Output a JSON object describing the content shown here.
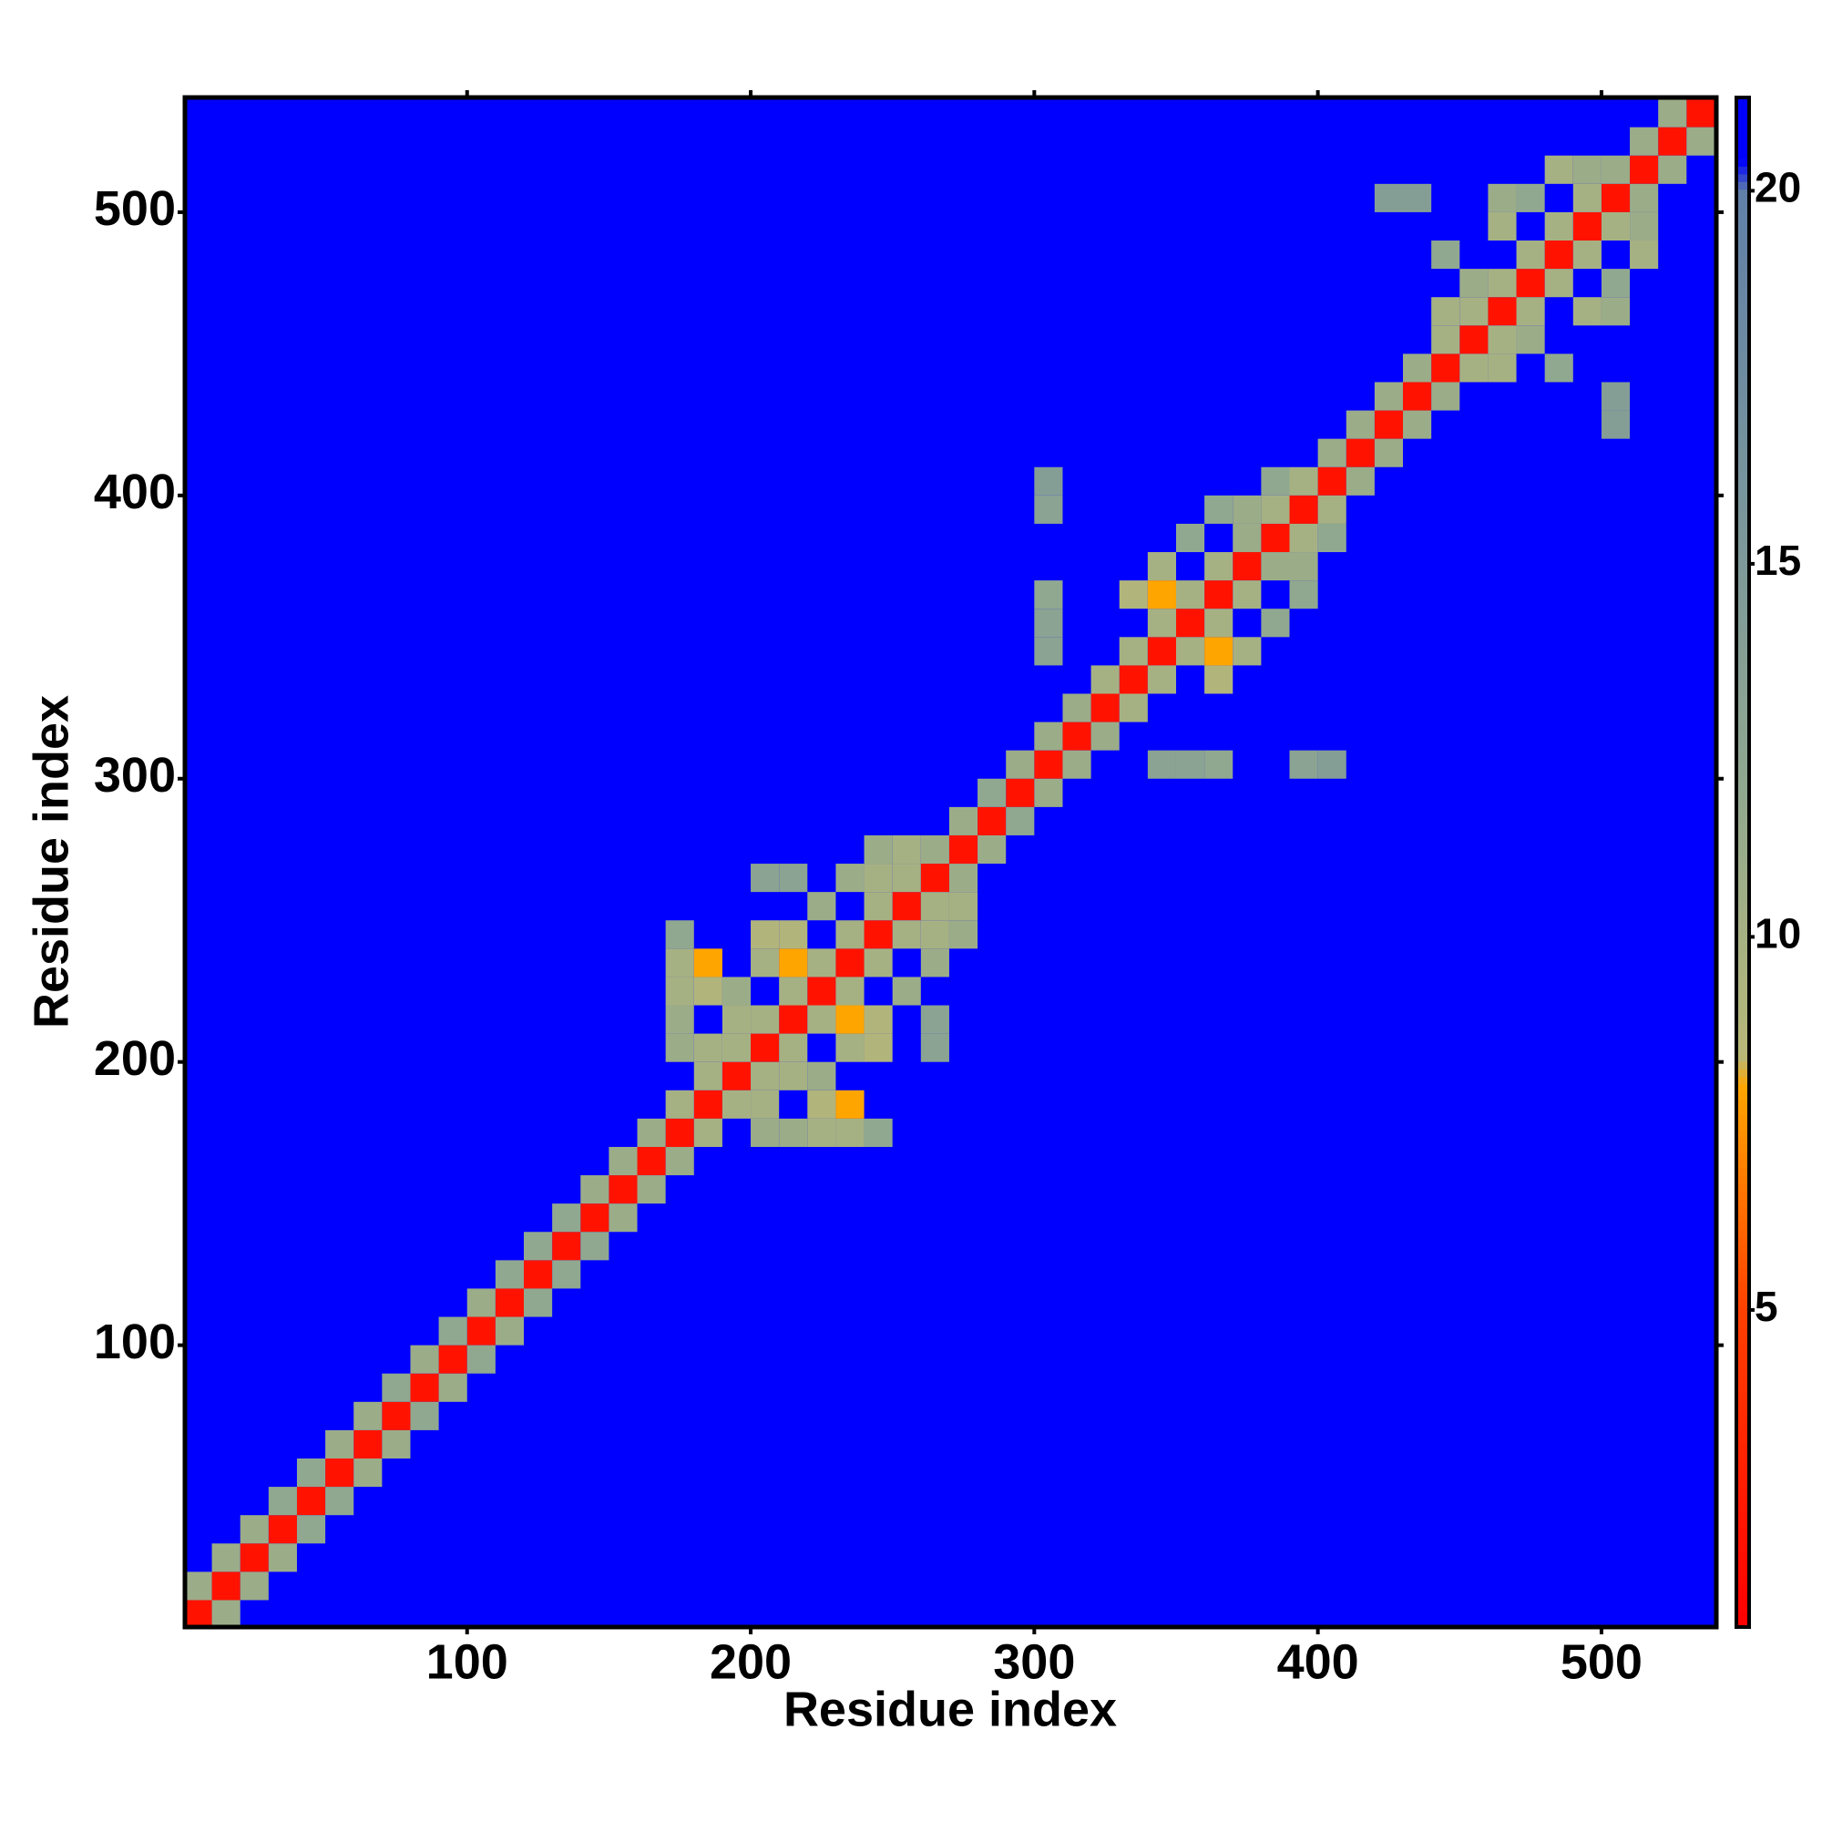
{
  "chart_data": {
    "type": "heatmap",
    "xlabel": "Residue index",
    "ylabel": "Residue index",
    "xlim": [
      0.5,
      540.5
    ],
    "ylim": [
      0.5,
      540.5
    ],
    "xticks": [
      100,
      200,
      300,
      400,
      500
    ],
    "yticks": [
      100,
      200,
      300,
      400,
      500
    ],
    "clim": [
      0.75,
      21.25
    ],
    "cticks": [
      5,
      10,
      15,
      20
    ],
    "colorscale": [
      [
        0.75,
        "#ff0000"
      ],
      [
        5,
        "#ff4000"
      ],
      [
        8,
        "#ffa500"
      ],
      [
        8.4,
        "#b8b878"
      ],
      [
        12,
        "#90a890"
      ],
      [
        20,
        "#6080a8"
      ],
      [
        20.4,
        "#0000ff"
      ],
      [
        21.25,
        "#0000ff"
      ]
    ],
    "background_value": 21,
    "cell_size": 10,
    "symmetric": true,
    "cells": [
      [
        0,
        0,
        2
      ],
      [
        10,
        10,
        2
      ],
      [
        20,
        20,
        2
      ],
      [
        30,
        30,
        2
      ],
      [
        40,
        40,
        2
      ],
      [
        50,
        50,
        2
      ],
      [
        60,
        60,
        2
      ],
      [
        70,
        70,
        2
      ],
      [
        80,
        80,
        2
      ],
      [
        90,
        90,
        2
      ],
      [
        100,
        100,
        2
      ],
      [
        110,
        110,
        2
      ],
      [
        120,
        120,
        2
      ],
      [
        130,
        130,
        2
      ],
      [
        140,
        140,
        2
      ],
      [
        150,
        150,
        2
      ],
      [
        160,
        160,
        2
      ],
      [
        170,
        170,
        2
      ],
      [
        180,
        180,
        2
      ],
      [
        190,
        190,
        2
      ],
      [
        200,
        200,
        2
      ],
      [
        210,
        210,
        2
      ],
      [
        220,
        220,
        2
      ],
      [
        230,
        230,
        2
      ],
      [
        240,
        240,
        2
      ],
      [
        250,
        250,
        2
      ],
      [
        260,
        260,
        2
      ],
      [
        270,
        270,
        2
      ],
      [
        280,
        280,
        2
      ],
      [
        290,
        290,
        2
      ],
      [
        300,
        300,
        2
      ],
      [
        310,
        310,
        2
      ],
      [
        320,
        320,
        2
      ],
      [
        330,
        330,
        2
      ],
      [
        340,
        340,
        2
      ],
      [
        350,
        350,
        2
      ],
      [
        360,
        360,
        2
      ],
      [
        370,
        370,
        2
      ],
      [
        380,
        380,
        2
      ],
      [
        390,
        390,
        2
      ],
      [
        400,
        400,
        2
      ],
      [
        410,
        410,
        2
      ],
      [
        420,
        420,
        2
      ],
      [
        430,
        430,
        2
      ],
      [
        440,
        440,
        2
      ],
      [
        450,
        450,
        2
      ],
      [
        460,
        460,
        2
      ],
      [
        470,
        470,
        2
      ],
      [
        480,
        480,
        2
      ],
      [
        490,
        490,
        2
      ],
      [
        500,
        500,
        2
      ],
      [
        510,
        510,
        2
      ],
      [
        520,
        520,
        2
      ],
      [
        530,
        530,
        2
      ],
      [
        0,
        10,
        11
      ],
      [
        10,
        20,
        11
      ],
      [
        20,
        30,
        11
      ],
      [
        30,
        40,
        12
      ],
      [
        40,
        50,
        12
      ],
      [
        50,
        60,
        11
      ],
      [
        60,
        70,
        11
      ],
      [
        70,
        80,
        12
      ],
      [
        80,
        90,
        11
      ],
      [
        90,
        100,
        12
      ],
      [
        100,
        110,
        11
      ],
      [
        110,
        120,
        12
      ],
      [
        120,
        130,
        12
      ],
      [
        130,
        140,
        12
      ],
      [
        140,
        150,
        11
      ],
      [
        150,
        160,
        11
      ],
      [
        160,
        170,
        11
      ],
      [
        170,
        180,
        10
      ],
      [
        180,
        190,
        10
      ],
      [
        190,
        200,
        10
      ],
      [
        200,
        210,
        10
      ],
      [
        210,
        220,
        10
      ],
      [
        220,
        230,
        10
      ],
      [
        230,
        240,
        10
      ],
      [
        240,
        250,
        10
      ],
      [
        250,
        260,
        10
      ],
      [
        260,
        270,
        11
      ],
      [
        270,
        280,
        11
      ],
      [
        280,
        290,
        12
      ],
      [
        290,
        300,
        11
      ],
      [
        300,
        310,
        11
      ],
      [
        310,
        320,
        11
      ],
      [
        320,
        330,
        10
      ],
      [
        330,
        340,
        10
      ],
      [
        340,
        350,
        10
      ],
      [
        350,
        360,
        10
      ],
      [
        360,
        370,
        10
      ],
      [
        370,
        380,
        11
      ],
      [
        380,
        390,
        10
      ],
      [
        390,
        400,
        10
      ],
      [
        400,
        410,
        11
      ],
      [
        410,
        420,
        11
      ],
      [
        420,
        430,
        11
      ],
      [
        430,
        440,
        11
      ],
      [
        440,
        450,
        10
      ],
      [
        450,
        460,
        10
      ],
      [
        460,
        470,
        10
      ],
      [
        470,
        480,
        10
      ],
      [
        480,
        490,
        10
      ],
      [
        490,
        500,
        10
      ],
      [
        500,
        510,
        11
      ],
      [
        510,
        520,
        11
      ],
      [
        520,
        530,
        11
      ],
      [
        170,
        200,
        11
      ],
      [
        170,
        210,
        11
      ],
      [
        170,
        220,
        10
      ],
      [
        170,
        230,
        10
      ],
      [
        170,
        240,
        12
      ],
      [
        180,
        200,
        10
      ],
      [
        180,
        220,
        9
      ],
      [
        180,
        230,
        8
      ],
      [
        190,
        210,
        10
      ],
      [
        190,
        220,
        11
      ],
      [
        200,
        230,
        10
      ],
      [
        200,
        240,
        9
      ],
      [
        210,
        230,
        8
      ],
      [
        210,
        240,
        9
      ],
      [
        220,
        250,
        11
      ],
      [
        200,
        260,
        13
      ],
      [
        210,
        260,
        13
      ],
      [
        230,
        260,
        11
      ],
      [
        240,
        260,
        10
      ],
      [
        240,
        270,
        11
      ],
      [
        250,
        270,
        10
      ],
      [
        300,
        340,
        13
      ],
      [
        300,
        350,
        13
      ],
      [
        300,
        360,
        12
      ],
      [
        300,
        390,
        13
      ],
      [
        300,
        400,
        14
      ],
      [
        330,
        360,
        9
      ],
      [
        340,
        360,
        8
      ],
      [
        340,
        370,
        10
      ],
      [
        350,
        380,
        12
      ],
      [
        360,
        390,
        12
      ],
      [
        370,
        390,
        11
      ],
      [
        380,
        400,
        12
      ],
      [
        440,
        460,
        10
      ],
      [
        450,
        470,
        11
      ],
      [
        440,
        480,
        12
      ],
      [
        460,
        490,
        10
      ],
      [
        460,
        500,
        11
      ],
      [
        470,
        500,
        12
      ],
      [
        480,
        510,
        10
      ],
      [
        490,
        510,
        11
      ],
      [
        420,
        500,
        14
      ],
      [
        430,
        500,
        14
      ]
    ]
  }
}
